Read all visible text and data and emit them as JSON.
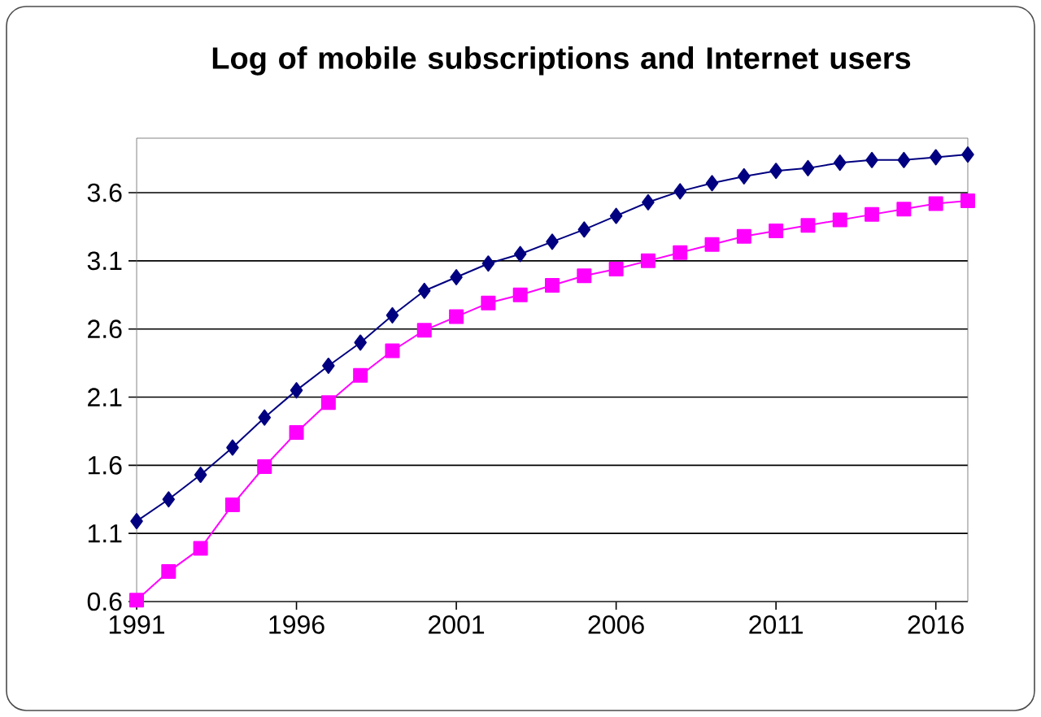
{
  "chart_data": {
    "type": "line",
    "title": "Log of mobile subscriptions and Internet users",
    "x": [
      1991,
      1992,
      1993,
      1994,
      1995,
      1996,
      1997,
      1998,
      1999,
      2000,
      2001,
      2002,
      2003,
      2004,
      2005,
      2006,
      2007,
      2008,
      2009,
      2010,
      2011,
      2012,
      2013,
      2014,
      2015,
      2016,
      2017
    ],
    "series": [
      {
        "color": "#000080",
        "marker": "diamond",
        "values": [
          1.19,
          1.35,
          1.53,
          1.73,
          1.95,
          2.15,
          2.33,
          2.5,
          2.7,
          2.88,
          2.98,
          3.08,
          3.15,
          3.24,
          3.33,
          3.43,
          3.53,
          3.61,
          3.67,
          3.72,
          3.76,
          3.78,
          3.82,
          3.84,
          3.84,
          3.86,
          3.88
        ]
      },
      {
        "color": "#ff00ff",
        "marker": "square",
        "values": [
          0.61,
          0.82,
          0.99,
          1.31,
          1.59,
          1.84,
          2.06,
          2.26,
          2.44,
          2.59,
          2.69,
          2.79,
          2.85,
          2.92,
          2.99,
          3.04,
          3.1,
          3.16,
          3.22,
          3.28,
          3.32,
          3.36,
          3.4,
          3.44,
          3.48,
          3.52,
          3.54
        ]
      }
    ],
    "xlim": [
      1991,
      2017
    ],
    "ylim": [
      0.6,
      4.0
    ],
    "xticks": [
      1991,
      1996,
      2001,
      2006,
      2011,
      2016
    ],
    "yticks": [
      0.6,
      1.1,
      1.6,
      2.1,
      2.6,
      3.1,
      3.6
    ],
    "grid": "y",
    "line_style": "solid"
  }
}
